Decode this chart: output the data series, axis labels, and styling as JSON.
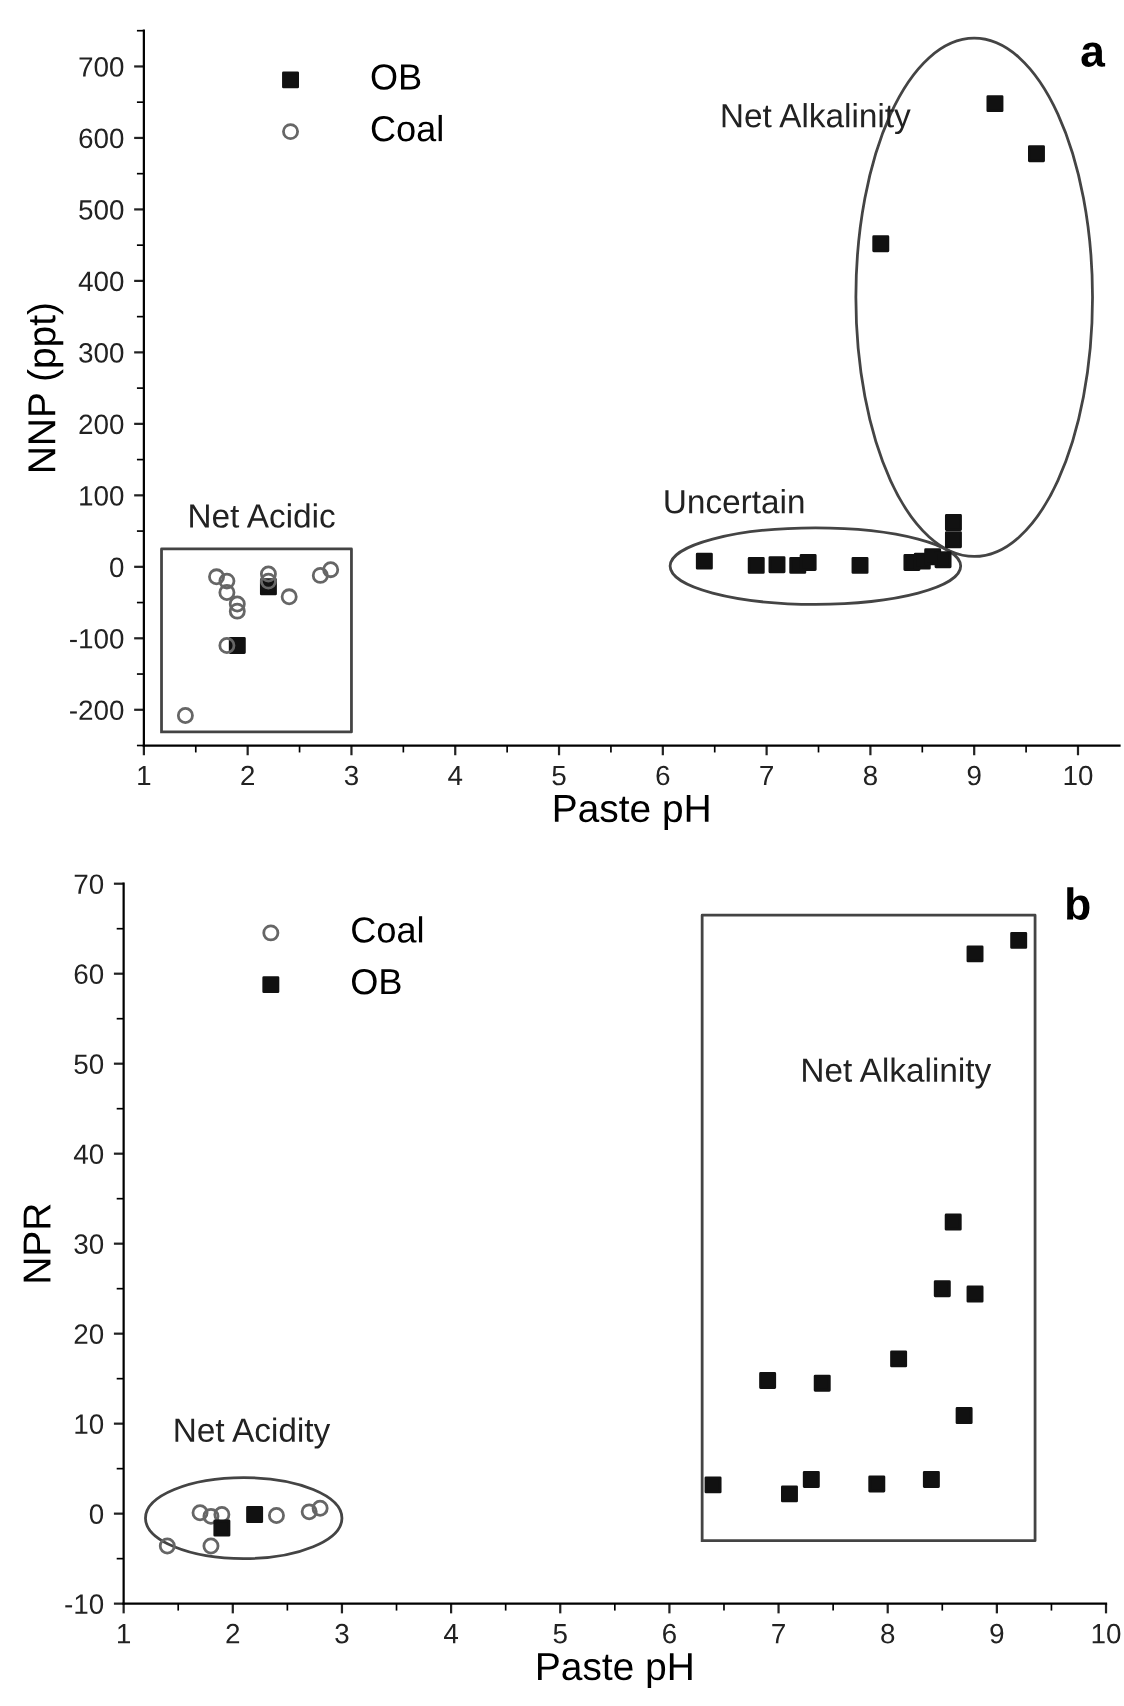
{
  "chart_data": [
    {
      "type": "scatter",
      "title": "a",
      "xlabel": "Paste pH",
      "ylabel": "NNP (ppt)",
      "xlim": [
        1,
        10.4
      ],
      "xticks": [
        1,
        2,
        3,
        4,
        5,
        6,
        7,
        8,
        9,
        10
      ],
      "ylim": [
        -250,
        750
      ],
      "yticks": [
        -200,
        -100,
        0,
        100,
        200,
        300,
        400,
        500,
        600,
        700
      ],
      "legend": "top left",
      "grid": false,
      "annotations": [
        "Net Alkalinity",
        "Uncertain",
        "Net Acidic"
      ],
      "series": [
        {
          "name": "OB",
          "color": "#111111",
          "marker": "square",
          "x": [
            6.4,
            6.9,
            7.1,
            7.3,
            7.4,
            7.9,
            8.4,
            8.5,
            8.6,
            8.7,
            8.8,
            8.8,
            8.1,
            9.2,
            9.6,
            1.9,
            2.2
          ],
          "values": [
            8,
            2,
            3,
            2,
            6,
            2,
            6,
            8,
            14,
            10,
            38,
            62,
            452,
            648,
            578,
            -110,
            -28
          ]
        },
        {
          "name": "Coal",
          "color": "#666666",
          "marker": "circle",
          "x": [
            1.7,
            1.8,
            1.8,
            1.9,
            1.9,
            2.2,
            2.2,
            2.4,
            2.7,
            2.8,
            1.8,
            1.4
          ],
          "values": [
            -14,
            -20,
            -36,
            -52,
            -62,
            -10,
            -20,
            -42,
            -12,
            -4,
            -110,
            -208
          ]
        }
      ]
    },
    {
      "type": "scatter",
      "title": "b",
      "xlabel": "Paste pH",
      "ylabel": "NPR",
      "xlim": [
        1,
        10
      ],
      "xticks": [
        1,
        2,
        3,
        4,
        5,
        6,
        7,
        8,
        9,
        10
      ],
      "ylim": [
        -10,
        70
      ],
      "yticks": [
        -10,
        0,
        10,
        20,
        30,
        40,
        50,
        60,
        70
      ],
      "legend": "top left",
      "grid": false,
      "annotations": [
        "Net Alkalinity",
        "Net Acidity"
      ],
      "series": [
        {
          "name": "Coal",
          "color": "#666666",
          "marker": "circle",
          "x": [
            1.7,
            1.8,
            1.9,
            2.4,
            2.7,
            2.8,
            1.4,
            1.8
          ],
          "values": [
            0.1,
            -0.3,
            -0.1,
            -0.2,
            0.2,
            0.6,
            -3.6,
            -3.6
          ]
        },
        {
          "name": "OB",
          "color": "#111111",
          "marker": "square",
          "x": [
            6.4,
            6.9,
            7.1,
            7.3,
            7.4,
            7.9,
            8.1,
            8.4,
            8.5,
            8.6,
            8.7,
            8.8,
            8.8,
            9.2,
            1.9,
            2.2
          ],
          "values": [
            3.2,
            14.8,
            2.2,
            3.8,
            14.5,
            3.3,
            17.2,
            3.8,
            25,
            32.4,
            10.9,
            24.4,
            62.2,
            63.7,
            -1.6,
            -0.1
          ]
        }
      ]
    }
  ]
}
